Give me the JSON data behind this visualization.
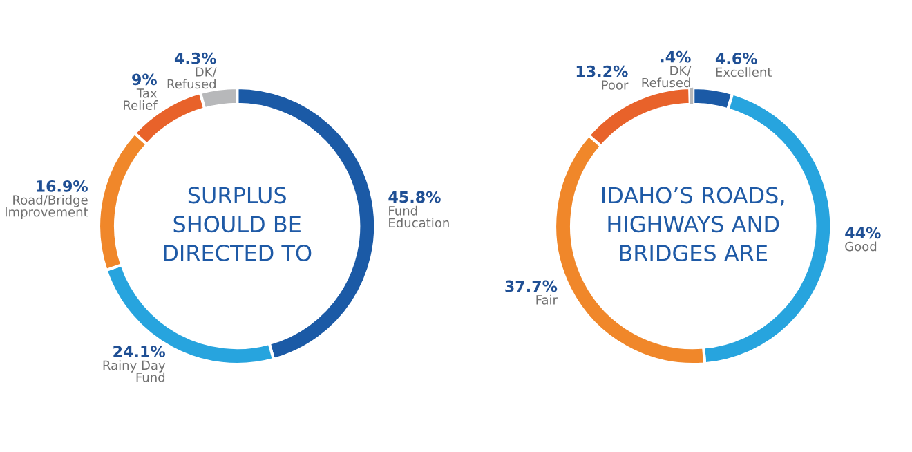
{
  "chart_data": [
    {
      "type": "donut",
      "title": "SURPLUS\nSHOULD BE\nDIRECTED TO",
      "categories": [
        "Fund\nEducation",
        "Rainy Day\nFund",
        "Road/Bridge\nImprovement",
        "Tax\nRelief",
        "DK/\nRefused"
      ],
      "values": [
        45.8,
        24.1,
        16.9,
        9,
        4.3
      ],
      "colors": [
        "#1b5aa6",
        "#27a4de",
        "#f0872a",
        "#e8622a",
        "#b7b8ba"
      ],
      "value_labels": [
        "45.8%",
        "24.1%",
        "16.9%",
        "9%",
        "4.3%"
      ]
    },
    {
      "type": "donut",
      "title": "IDAHO’S ROADS,\nHIGHWAYS AND\nBRIDGES ARE",
      "categories": [
        "Excellent",
        "Good",
        "Fair",
        "Poor",
        "DK/\nRefused"
      ],
      "values": [
        4.6,
        44,
        37.7,
        13.2,
        0.4
      ],
      "colors": [
        "#1b5aa6",
        "#27a4de",
        "#f0872a",
        "#e8622a",
        "#b7b8ba"
      ],
      "value_labels": [
        "4.6%",
        "44%",
        "37.7%",
        "13.2%",
        ".4%"
      ]
    }
  ]
}
